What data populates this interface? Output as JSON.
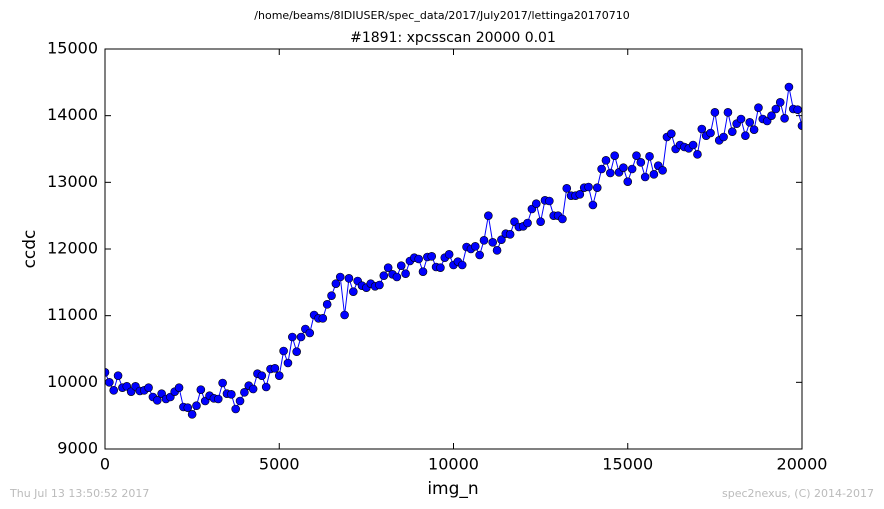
{
  "chart_data": {
    "type": "line",
    "suptitle": "/home/beams/8IDIUSER/spec_data/2017/July2017/lettinga20170710",
    "title": "#1891: xpcsscan 20000 0.01",
    "xlabel": "img_n",
    "ylabel": "ccdc",
    "footer_left": "Thu Jul 13 13:50:52 2017",
    "footer_right": "spec2nexus, (C) 2014-2017",
    "xlim": [
      0,
      20000
    ],
    "xticks": [
      0,
      5000,
      10000,
      15000,
      20000
    ],
    "ylim": [
      9000,
      15000
    ],
    "yticks": [
      9000,
      10000,
      11000,
      12000,
      13000,
      14000,
      15000
    ],
    "grid": false,
    "series": [
      {
        "name": "ccdc",
        "color": "#0000ff",
        "x": [
          0,
          125,
          250,
          375,
          500,
          625,
          750,
          875,
          1000,
          1125,
          1250,
          1375,
          1500,
          1625,
          1750,
          1875,
          2000,
          2125,
          2250,
          2375,
          2500,
          2625,
          2750,
          2875,
          3000,
          3125,
          3250,
          3375,
          3500,
          3625,
          3750,
          3875,
          4000,
          4125,
          4250,
          4375,
          4500,
          4625,
          4750,
          4875,
          5000,
          5125,
          5250,
          5375,
          5500,
          5625,
          5750,
          5875,
          6000,
          6125,
          6250,
          6375,
          6500,
          6625,
          6750,
          6875,
          7000,
          7125,
          7250,
          7375,
          7500,
          7625,
          7750,
          7875,
          8000,
          8125,
          8250,
          8375,
          8500,
          8625,
          8750,
          8875,
          9000,
          9125,
          9250,
          9375,
          9500,
          9625,
          9750,
          9875,
          10000,
          10125,
          10250,
          10375,
          10500,
          10625,
          10750,
          10875,
          11000,
          11125,
          11250,
          11375,
          11500,
          11625,
          11750,
          11875,
          12000,
          12125,
          12250,
          12375,
          12500,
          12625,
          12750,
          12875,
          13000,
          13125,
          13250,
          13375,
          13500,
          13625,
          13750,
          13875,
          14000,
          14125,
          14250,
          14375,
          14500,
          14625,
          14750,
          14875,
          15000,
          15125,
          15250,
          15375,
          15500,
          15625,
          15750,
          15875,
          16000,
          16125,
          16250,
          16375,
          16500,
          16625,
          16750,
          16875,
          17000,
          17125,
          17250,
          17375,
          17500,
          17625,
          17750,
          17875,
          18000,
          18125,
          18250,
          18375,
          18500,
          18625,
          18750,
          18875,
          19000,
          19125,
          19250,
          19375,
          19500,
          19625,
          19750,
          19875,
          20000
        ],
        "values": [
          10150,
          10000,
          9880,
          10100,
          9920,
          9940,
          9860,
          9940,
          9870,
          9880,
          9920,
          9780,
          9730,
          9830,
          9750,
          9780,
          9860,
          9920,
          9630,
          9620,
          9520,
          9650,
          9890,
          9720,
          9800,
          9760,
          9750,
          9990,
          9830,
          9820,
          9600,
          9720,
          9850,
          9950,
          9900,
          10130,
          10100,
          9930,
          10200,
          10210,
          10100,
          10470,
          10290,
          10680,
          10460,
          10680,
          10800,
          10740,
          11010,
          10960,
          10960,
          11170,
          11300,
          11480,
          11580,
          11010,
          11560,
          11360,
          11520,
          11450,
          11420,
          11480,
          11440,
          11460,
          11600,
          11720,
          11620,
          11580,
          11750,
          11630,
          11820,
          11870,
          11850,
          11660,
          11880,
          11890,
          11730,
          11720,
          11870,
          11920,
          11760,
          11810,
          11760,
          12030,
          12000,
          12040,
          11910,
          12130,
          12500,
          12100,
          11980,
          12140,
          12230,
          12220,
          12410,
          12330,
          12340,
          12390,
          12600,
          12680,
          12410,
          12730,
          12720,
          12500,
          12500,
          12450,
          12910,
          12800,
          12800,
          12820,
          12920,
          12930,
          12660,
          12920,
          13200,
          13330,
          13140,
          13400,
          13150,
          13220,
          13010,
          13200,
          13400,
          13300,
          13080,
          13390,
          13120,
          13250,
          13180,
          13680,
          13730,
          13500,
          13560,
          13530,
          13510,
          13560,
          13420,
          13800,
          13700,
          13740,
          14050,
          13630,
          13680,
          14050,
          13760,
          13880,
          13950,
          13700,
          13900,
          13790,
          14120,
          13950,
          13920,
          14000,
          14100,
          14200,
          13960,
          14430,
          14100,
          14090,
          13850
        ]
      }
    ]
  }
}
